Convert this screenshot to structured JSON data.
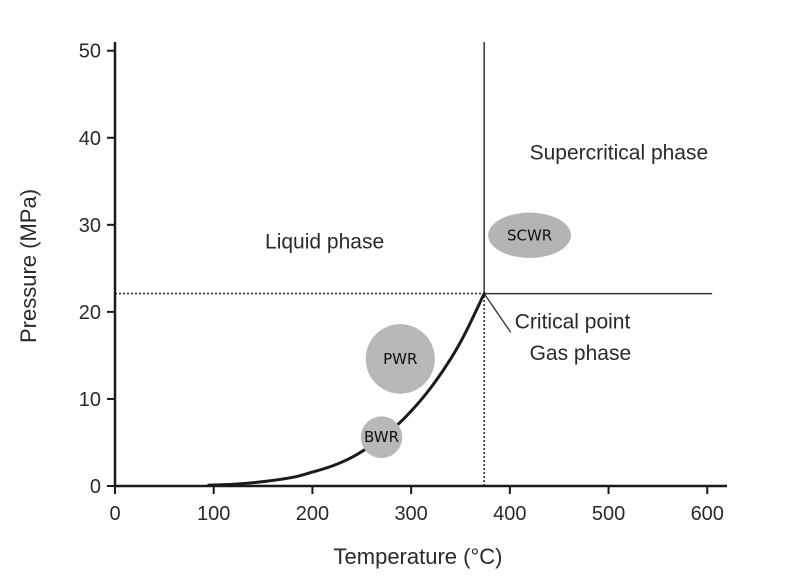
{
  "chart_data": {
    "type": "line",
    "xlabel": "Temperature (°C)",
    "ylabel": "Pressure (MPa)",
    "xlim": [
      0,
      620
    ],
    "ylim": [
      0,
      51
    ],
    "xticks": [
      0,
      100,
      200,
      300,
      400,
      500,
      600
    ],
    "yticks": [
      0,
      10,
      20,
      30,
      40,
      50
    ],
    "grid": false,
    "series": [
      {
        "x": [
          95,
          120,
          150,
          180,
          200,
          220,
          240,
          260,
          280,
          300,
          320,
          340,
          355,
          374
        ],
        "y": [
          0.1,
          0.2,
          0.5,
          1.0,
          1.6,
          2.3,
          3.3,
          4.7,
          6.4,
          8.6,
          11.3,
          14.6,
          17.6,
          22.1
        ],
        "color": "#1a1a1a"
      }
    ],
    "critical_point": {
      "x": 374,
      "y": 22.1
    },
    "phase_boundaries": [
      {
        "from": [
          374,
          22.1
        ],
        "to": [
          374,
          51
        ],
        "style": "solid"
      },
      {
        "from": [
          374,
          22.1
        ],
        "to": [
          605,
          22.1
        ],
        "style": "solid"
      },
      {
        "from": [
          0,
          22.1
        ],
        "to": [
          374,
          22.1
        ],
        "style": "dotted"
      },
      {
        "from": [
          374,
          0
        ],
        "to": [
          374,
          22.1
        ],
        "style": "dotted"
      }
    ],
    "region_labels": [
      {
        "text": "Supercritical phase",
        "x": 420,
        "y": 37.5
      },
      {
        "text": "Liquid phase",
        "x": 152,
        "y": 27.3
      },
      {
        "text": "Critical point",
        "x": 405,
        "y": 18.1
      },
      {
        "text": "Gas phase",
        "x": 420,
        "y": 14.5
      }
    ],
    "reactor_markers": [
      {
        "label": "SCWR",
        "x": 420,
        "y": 28.8,
        "rx_data": 42,
        "ry_data": 2.6,
        "color": "#b4b4b4"
      },
      {
        "label": "PWR",
        "x": 289,
        "y": 14.6,
        "rx_data": 35,
        "ry_data": 4.0,
        "color": "#b8b8b8"
      },
      {
        "label": "BWR",
        "x": 270,
        "y": 5.6,
        "rx_data": 21,
        "ry_data": 2.4,
        "color": "#b8b8b8"
      }
    ]
  }
}
